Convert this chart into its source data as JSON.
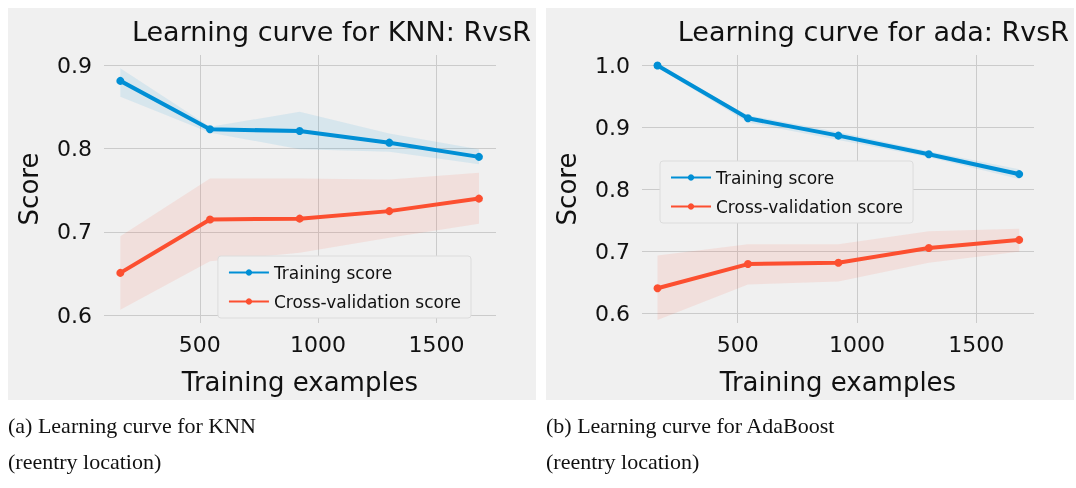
{
  "chart_data": [
    {
      "type": "line",
      "title": "Learning curve for KNN: RvsR",
      "xlabel": "Training examples",
      "ylabel": "Score",
      "x": [
        164,
        543,
        922,
        1301,
        1680
      ],
      "xlim": [
        95,
        1752
      ],
      "xticks": [
        500,
        1000,
        1500
      ],
      "ylim": [
        0.591,
        0.912
      ],
      "yticks": [
        0.6,
        0.7,
        0.8,
        0.9
      ],
      "grid": true,
      "legend": "bottom right",
      "marker": "circle",
      "line_style": "solid",
      "series": [
        {
          "name": "Training score",
          "color": "#008fd5",
          "values": [
            0.881,
            0.823,
            0.821,
            0.807,
            0.79
          ],
          "lower": [
            0.862,
            0.819,
            0.799,
            0.796,
            0.781
          ],
          "upper": [
            0.896,
            0.826,
            0.844,
            0.818,
            0.799
          ]
        },
        {
          "name": "Cross-validation score",
          "color": "#fc4f30",
          "values": [
            0.651,
            0.715,
            0.716,
            0.725,
            0.74
          ],
          "lower": [
            0.607,
            0.665,
            0.675,
            0.693,
            0.71
          ],
          "upper": [
            0.695,
            0.764,
            0.764,
            0.763,
            0.771
          ]
        }
      ],
      "annotations": [
        "(a) Learning curve for KNN\n(reentry location)"
      ]
    },
    {
      "type": "line",
      "title": "Learning curve for ada: RvsR",
      "xlabel": "Training examples",
      "ylabel": "Score",
      "x": [
        164,
        543,
        922,
        1301,
        1680
      ],
      "xlim": [
        99,
        1742
      ],
      "xticks": [
        500,
        1000,
        1500
      ],
      "ylim": [
        0.585,
        1.017
      ],
      "yticks": [
        {
          "value": 0.6,
          "label": "0.6"
        },
        {
          "value": 0.7,
          "label": "0.7"
        },
        {
          "value": 0.8,
          "label": "0.8"
        },
        {
          "value": 0.9,
          "label": "0.9"
        },
        {
          "value": 1.0,
          "label": "1.0"
        }
      ],
      "grid": true,
      "legend": "left",
      "marker": "circle",
      "line_style": "solid",
      "series": [
        {
          "name": "Training score",
          "color": "#008fd5",
          "values": [
            1.0,
            0.915,
            0.887,
            0.857,
            0.825
          ],
          "lower": [
            0.997,
            0.908,
            0.88,
            0.852,
            0.817
          ],
          "upper": [
            1.0,
            0.92,
            0.893,
            0.862,
            0.833
          ]
        },
        {
          "name": "Cross-validation score",
          "color": "#fc4f30",
          "values": [
            0.641,
            0.68,
            0.682,
            0.706,
            0.719
          ],
          "lower": [
            0.59,
            0.647,
            0.652,
            0.682,
            0.7
          ],
          "upper": [
            0.694,
            0.712,
            0.712,
            0.733,
            0.737
          ]
        }
      ],
      "annotations": [
        "(b) Learning curve for AdaBoost\n(reentry location)"
      ]
    }
  ]
}
